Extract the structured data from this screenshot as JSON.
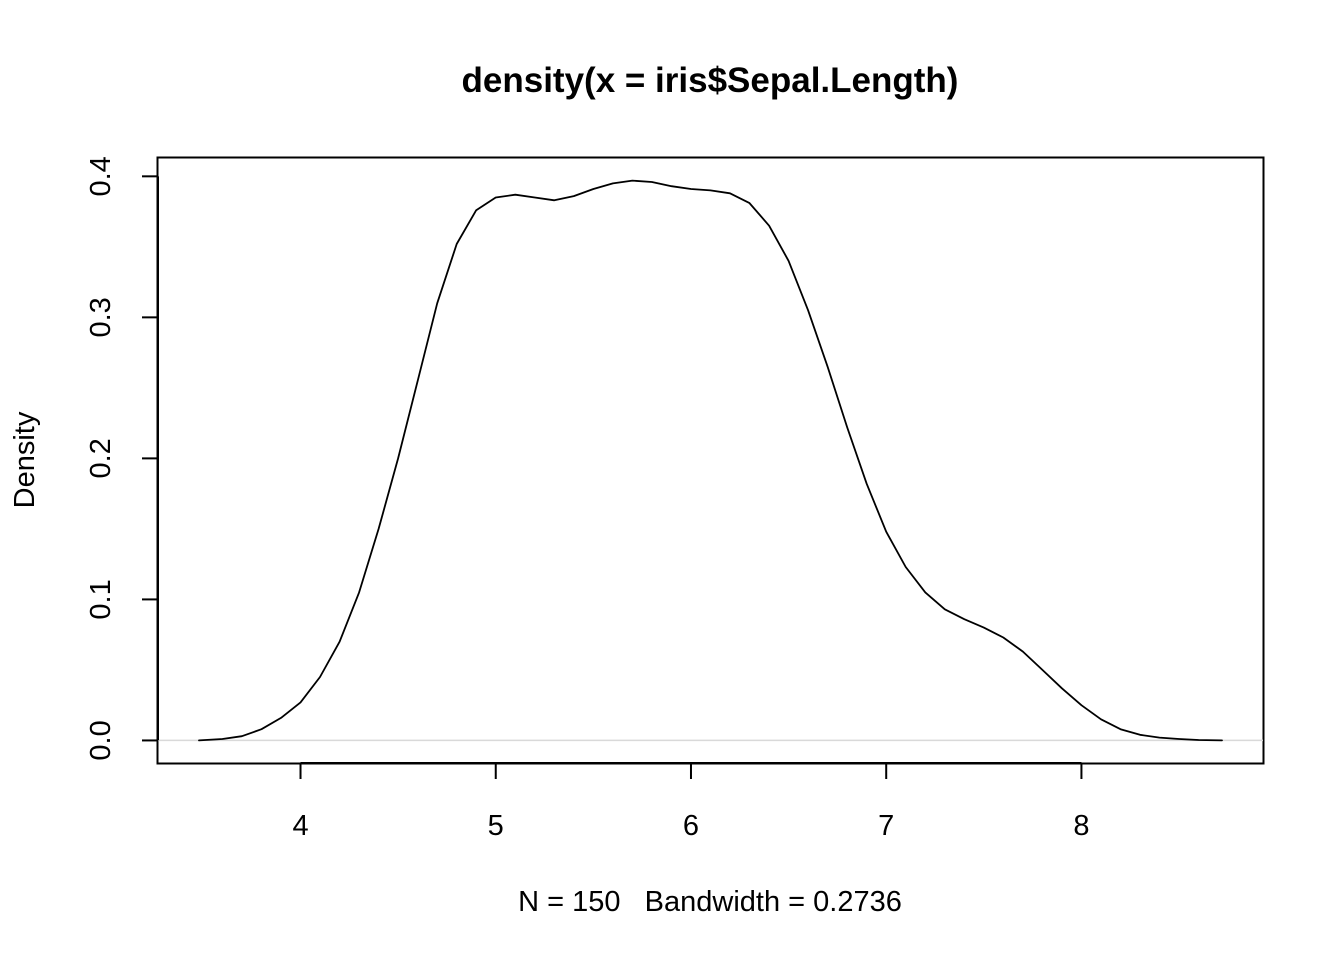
{
  "chart_data": {
    "type": "line",
    "title": "density(x = iris$Sepal.Length)",
    "xlabel": "N = 150   Bandwidth = 0.2736",
    "ylabel": "Density",
    "xlim": [
      3.27,
      8.93
    ],
    "ylim": [
      -0.016,
      0.413
    ],
    "x_ticks": [
      4,
      5,
      6,
      7,
      8
    ],
    "x_tick_labels": [
      "4",
      "5",
      "6",
      "7",
      "8"
    ],
    "y_ticks": [
      0.0,
      0.1,
      0.2,
      0.3,
      0.4
    ],
    "y_tick_labels": [
      "0.0",
      "0.1",
      "0.2",
      "0.3",
      "0.4"
    ],
    "zero_line": true,
    "grid": false,
    "colors": {
      "line": "#000000",
      "zero_line": "#d9d9d9",
      "axes": "#000000"
    },
    "series": [
      {
        "x": [
          3.48,
          3.6,
          3.7,
          3.8,
          3.9,
          4.0,
          4.1,
          4.2,
          4.3,
          4.4,
          4.5,
          4.6,
          4.7,
          4.8,
          4.9,
          5.0,
          5.1,
          5.2,
          5.3,
          5.4,
          5.5,
          5.6,
          5.7,
          5.8,
          5.9,
          6.0,
          6.1,
          6.2,
          6.3,
          6.4,
          6.5,
          6.6,
          6.7,
          6.8,
          6.9,
          7.0,
          7.1,
          7.2,
          7.3,
          7.4,
          7.5,
          7.6,
          7.7,
          7.8,
          7.9,
          8.0,
          8.1,
          8.2,
          8.3,
          8.4,
          8.5,
          8.6,
          8.72
        ],
        "y": [
          0.0,
          0.001,
          0.003,
          0.008,
          0.016,
          0.027,
          0.045,
          0.07,
          0.105,
          0.15,
          0.2,
          0.255,
          0.31,
          0.352,
          0.376,
          0.385,
          0.387,
          0.385,
          0.383,
          0.386,
          0.391,
          0.395,
          0.397,
          0.396,
          0.393,
          0.391,
          0.39,
          0.388,
          0.381,
          0.365,
          0.34,
          0.305,
          0.265,
          0.222,
          0.182,
          0.148,
          0.123,
          0.105,
          0.093,
          0.086,
          0.08,
          0.073,
          0.063,
          0.05,
          0.037,
          0.025,
          0.015,
          0.008,
          0.004,
          0.002,
          0.001,
          0.0003,
          0.0
        ]
      }
    ]
  }
}
